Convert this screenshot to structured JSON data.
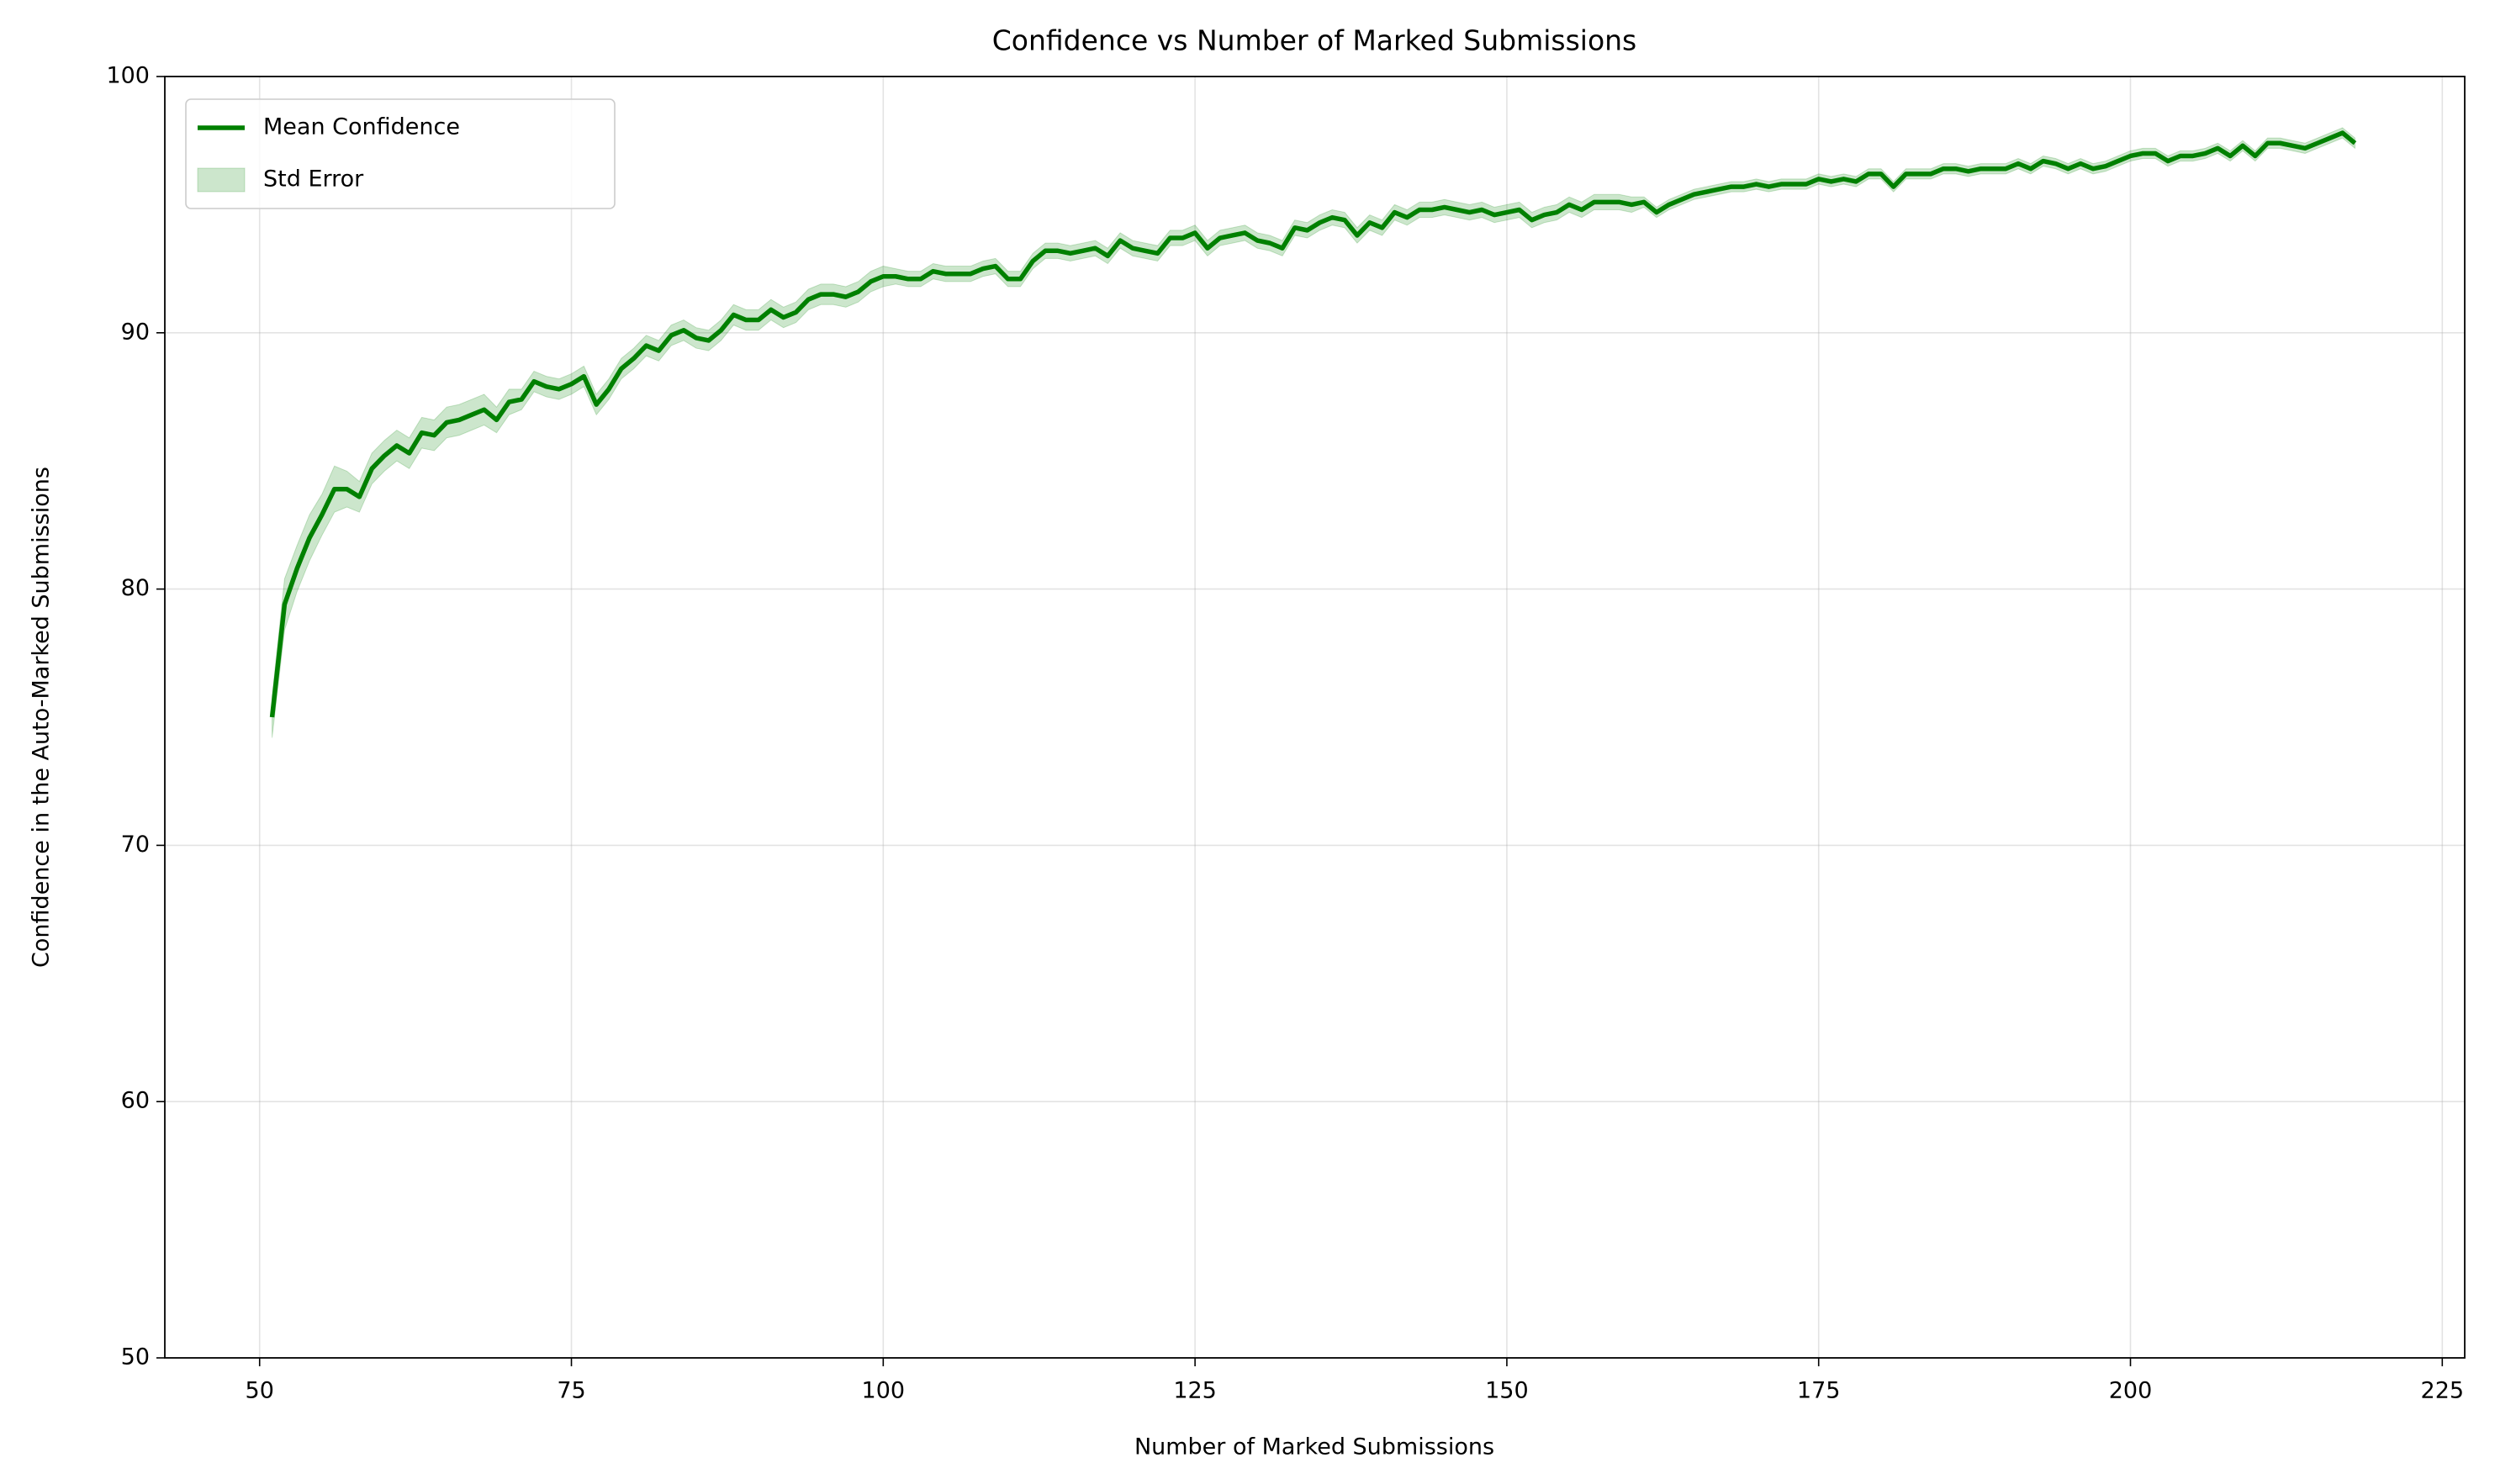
{
  "chart_data": {
    "type": "line",
    "title": "Confidence vs Number of Marked Submissions",
    "x_label": "Number of Marked Submissions",
    "y_label": "Confidence in the Auto-Marked Submissions",
    "x": [
      51,
      52,
      53,
      54,
      55,
      56,
      57,
      58,
      59,
      60,
      61,
      62,
      63,
      64,
      65,
      66,
      67,
      68,
      69,
      70,
      71,
      72,
      73,
      74,
      75,
      76,
      77,
      78,
      79,
      80,
      81,
      82,
      83,
      84,
      85,
      86,
      87,
      88,
      89,
      90,
      91,
      92,
      93,
      94,
      95,
      96,
      97,
      98,
      99,
      100,
      101,
      102,
      103,
      104,
      105,
      106,
      107,
      108,
      109,
      110,
      111,
      112,
      113,
      114,
      115,
      116,
      117,
      118,
      119,
      120,
      121,
      122,
      123,
      124,
      125,
      126,
      127,
      128,
      129,
      130,
      131,
      132,
      133,
      134,
      135,
      136,
      137,
      138,
      139,
      140,
      141,
      142,
      143,
      144,
      145,
      146,
      147,
      148,
      149,
      150,
      151,
      152,
      153,
      154,
      155,
      156,
      157,
      158,
      159,
      160,
      161,
      162,
      163,
      164,
      165,
      166,
      167,
      168,
      169,
      170,
      171,
      172,
      173,
      174,
      175,
      176,
      177,
      178,
      179,
      180,
      181,
      182,
      183,
      184,
      185,
      186,
      187,
      188,
      189,
      190,
      191,
      192,
      193,
      194,
      195,
      196,
      197,
      198,
      199,
      200,
      201,
      202,
      203,
      204,
      205,
      206,
      207,
      208,
      209,
      210,
      211,
      212,
      213,
      214,
      215,
      216,
      217,
      218
    ],
    "series": [
      {
        "name": "Mean Confidence",
        "color": "#008000",
        "role": "line",
        "values": [
          75.0,
          79.4,
          80.8,
          82.0,
          82.9,
          83.9,
          83.9,
          83.6,
          84.7,
          85.2,
          85.6,
          85.3,
          86.1,
          86.0,
          86.5,
          86.6,
          86.8,
          87.0,
          86.6,
          87.3,
          87.4,
          88.1,
          87.9,
          87.8,
          88.0,
          88.3,
          87.2,
          87.8,
          88.6,
          89.0,
          89.5,
          89.3,
          89.9,
          90.1,
          89.8,
          89.7,
          90.1,
          90.7,
          90.5,
          90.5,
          90.9,
          90.6,
          90.8,
          91.3,
          91.5,
          91.5,
          91.4,
          91.6,
          92.0,
          92.2,
          92.2,
          92.1,
          92.1,
          92.4,
          92.3,
          92.3,
          92.3,
          92.5,
          92.6,
          92.1,
          92.1,
          92.8,
          93.2,
          93.2,
          93.1,
          93.2,
          93.3,
          93.0,
          93.6,
          93.3,
          93.2,
          93.1,
          93.7,
          93.7,
          93.9,
          93.3,
          93.7,
          93.8,
          93.9,
          93.6,
          93.5,
          93.3,
          94.1,
          94.0,
          94.3,
          94.5,
          94.4,
          93.8,
          94.3,
          94.1,
          94.7,
          94.5,
          94.8,
          94.8,
          94.9,
          94.8,
          94.7,
          94.8,
          94.6,
          94.7,
          94.8,
          94.4,
          94.6,
          94.7,
          95.0,
          94.8,
          95.1,
          95.1,
          95.1,
          95.0,
          95.1,
          94.7,
          95.0,
          95.2,
          95.4,
          95.5,
          95.6,
          95.7,
          95.7,
          95.8,
          95.7,
          95.8,
          95.8,
          95.8,
          96.0,
          95.9,
          96.0,
          95.9,
          96.2,
          96.2,
          95.7,
          96.2,
          96.2,
          96.2,
          96.4,
          96.4,
          96.3,
          96.4,
          96.4,
          96.4,
          96.6,
          96.4,
          96.7,
          96.6,
          96.4,
          96.6,
          96.4,
          96.5,
          96.7,
          96.9,
          97.0,
          97.0,
          96.7,
          96.9,
          96.9,
          97.0,
          97.2,
          96.9,
          97.3,
          96.9,
          97.4,
          97.4,
          97.3,
          97.2,
          97.4,
          97.6,
          97.8,
          97.4
        ]
      },
      {
        "name": "Std Error",
        "color": "#008000",
        "alpha": 0.2,
        "role": "band",
        "values": [
          0.8,
          1.0,
          0.9,
          0.9,
          0.8,
          0.9,
          0.7,
          0.6,
          0.6,
          0.6,
          0.6,
          0.6,
          0.6,
          0.6,
          0.6,
          0.6,
          0.6,
          0.6,
          0.5,
          0.5,
          0.4,
          0.4,
          0.4,
          0.4,
          0.4,
          0.4,
          0.4,
          0.4,
          0.4,
          0.4,
          0.4,
          0.4,
          0.4,
          0.4,
          0.4,
          0.4,
          0.4,
          0.4,
          0.4,
          0.4,
          0.4,
          0.4,
          0.4,
          0.4,
          0.4,
          0.4,
          0.4,
          0.4,
          0.4,
          0.4,
          0.3,
          0.3,
          0.3,
          0.3,
          0.3,
          0.3,
          0.3,
          0.3,
          0.3,
          0.3,
          0.3,
          0.3,
          0.3,
          0.3,
          0.3,
          0.3,
          0.3,
          0.3,
          0.3,
          0.3,
          0.3,
          0.3,
          0.3,
          0.3,
          0.3,
          0.3,
          0.3,
          0.3,
          0.3,
          0.3,
          0.3,
          0.3,
          0.3,
          0.3,
          0.3,
          0.3,
          0.3,
          0.3,
          0.3,
          0.3,
          0.3,
          0.3,
          0.3,
          0.3,
          0.3,
          0.3,
          0.3,
          0.3,
          0.3,
          0.3,
          0.3,
          0.3,
          0.3,
          0.3,
          0.3,
          0.3,
          0.3,
          0.3,
          0.3,
          0.3,
          0.2,
          0.2,
          0.2,
          0.2,
          0.2,
          0.2,
          0.2,
          0.2,
          0.2,
          0.2,
          0.2,
          0.2,
          0.2,
          0.2,
          0.2,
          0.2,
          0.2,
          0.2,
          0.2,
          0.2,
          0.2,
          0.2,
          0.2,
          0.2,
          0.2,
          0.2,
          0.2,
          0.2,
          0.2,
          0.2,
          0.2,
          0.2,
          0.2,
          0.2,
          0.2,
          0.2,
          0.2,
          0.2,
          0.2,
          0.2,
          0.2,
          0.2,
          0.2,
          0.2,
          0.2,
          0.2,
          0.2,
          0.2,
          0.2,
          0.2,
          0.2,
          0.2,
          0.2,
          0.2,
          0.2,
          0.2,
          0.2,
          0.2
        ]
      }
    ],
    "xlim": [
      42.4,
      226.8
    ],
    "ylim": [
      50,
      100
    ],
    "xticks": [
      50,
      75,
      100,
      125,
      150,
      175,
      200,
      225
    ],
    "yticks": [
      50,
      60,
      70,
      80,
      90,
      100
    ],
    "grid": true,
    "legend": "upper left"
  }
}
